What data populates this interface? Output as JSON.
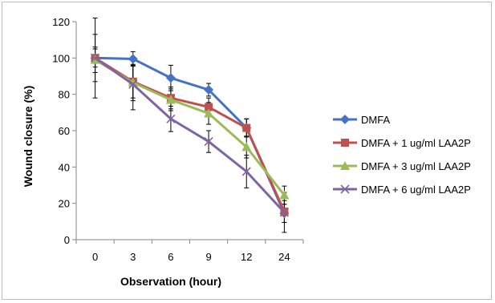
{
  "chart_data": {
    "type": "line",
    "xlabel": "Observation (hour)",
    "ylabel": "Wound closure (%)",
    "categories": [
      "0",
      "3",
      "6",
      "9",
      "12",
      "24"
    ],
    "ylim": [
      0,
      120
    ],
    "yticks": [
      0,
      20,
      40,
      60,
      80,
      100,
      120
    ],
    "grid": false,
    "legend_position": "right",
    "series": [
      {
        "name": "DMFA",
        "color": "#4472C4",
        "marker": "diamond",
        "values": [
          100,
          99.5,
          89,
          82.5,
          61.5,
          14.5
        ],
        "errors": [
          13,
          4,
          7,
          3.5,
          5,
          5
        ]
      },
      {
        "name": "DMFA + 1 ug/ml LAA2P",
        "color": "#C0504D",
        "marker": "square",
        "values": [
          100,
          87,
          78,
          73,
          61.5,
          15.5
        ],
        "errors": [
          5,
          9,
          6,
          5,
          5,
          6
        ]
      },
      {
        "name": "DMFA + 3 ug/ml LAA2P",
        "color": "#9BBB59",
        "marker": "triangle",
        "values": [
          99,
          86.5,
          77,
          69.5,
          51,
          24.5
        ],
        "errors": [
          7,
          10,
          6,
          6,
          6,
          5
        ]
      },
      {
        "name": "DMFA + 6 ug/ml LAA2P",
        "color": "#8064A2",
        "marker": "x",
        "values": [
          100,
          85.5,
          66.5,
          54,
          37.5,
          15
        ],
        "errors": [
          22,
          14,
          7,
          6,
          9,
          11
        ]
      }
    ]
  }
}
